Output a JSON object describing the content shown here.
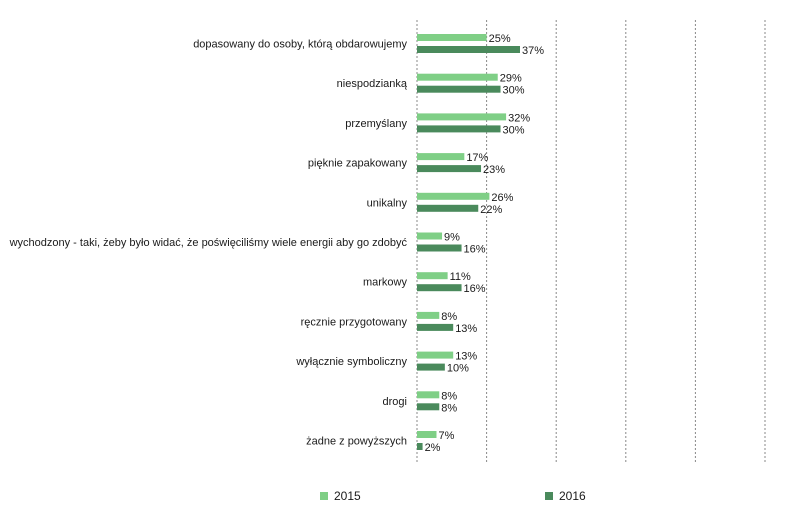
{
  "chart_data": {
    "type": "bar",
    "orientation": "horizontal",
    "categories": [
      "dopasowany do osoby, którą obdarowujemy",
      "niespodzianką",
      "przemyślany",
      "pięknie zapakowany",
      "unikalny",
      "wychodzony - taki, żeby było widać, że poświęciliśmy wiele energii aby go zdobyć",
      "markowy",
      "ręcznie przygotowany",
      "wyłącznie symboliczny",
      "drogi",
      "żadne z powyższych"
    ],
    "series": [
      {
        "name": "2015",
        "color": "#7fcf86",
        "values": [
          25,
          29,
          32,
          17,
          26,
          9,
          11,
          8,
          13,
          8,
          7
        ],
        "labels": [
          "25%",
          "29%",
          "32%",
          "17%",
          "26%",
          "9%",
          "11%",
          "8%",
          "13%",
          "8%",
          "7%"
        ]
      },
      {
        "name": "2016",
        "color": "#4a8a5c",
        "values": [
          37,
          30,
          30,
          23,
          22,
          16,
          16,
          13,
          10,
          8,
          2
        ],
        "labels": [
          "37%",
          "30%",
          "30%",
          "23%",
          "22%",
          "16%",
          "16%",
          "13%",
          "10%",
          "8%",
          "2%"
        ]
      }
    ],
    "xlim": [
      0,
      125
    ],
    "grid": true,
    "grid_step": 25,
    "gridline_color": "#888888",
    "legend_position": "bottom"
  }
}
